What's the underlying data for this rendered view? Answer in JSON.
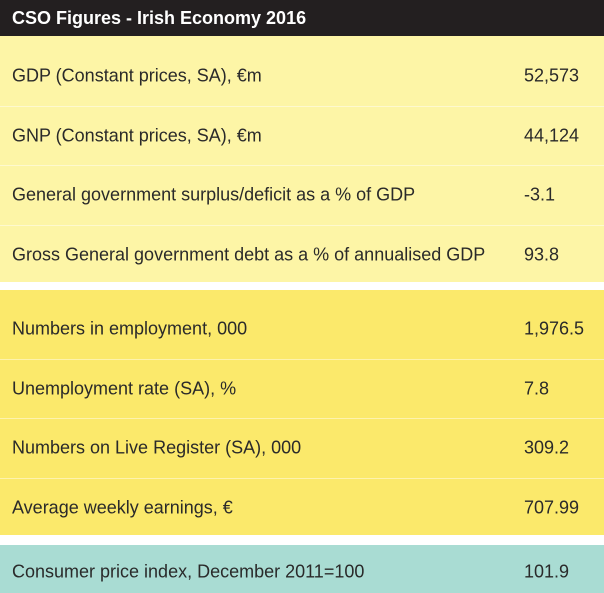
{
  "header": {
    "title": "CSO Figures - Irish Economy 2016"
  },
  "groups": [
    {
      "rows": [
        {
          "label": "GDP (Constant prices, SA), €m",
          "value": "52,573"
        },
        {
          "label": "GNP (Constant prices, SA), €m",
          "value": "44,124"
        },
        {
          "label": "General government surplus/deficit as a % of GDP",
          "value": "-3.1"
        },
        {
          "label": "Gross General government debt as a % of annualised GDP",
          "value": "93.8"
        }
      ]
    },
    {
      "rows": [
        {
          "label": "Numbers in employment, 000",
          "value": "1,976.5"
        },
        {
          "label": "Unemployment rate (SA), %",
          "value": "7.8"
        },
        {
          "label": "Numbers on Live Register (SA), 000",
          "value": "309.2"
        },
        {
          "label": "Average weekly earnings, €",
          "value": "707.99"
        }
      ]
    },
    {
      "rows": [
        {
          "label": "Consumer price index, December 2011=100",
          "value": "101.9"
        }
      ]
    }
  ]
}
